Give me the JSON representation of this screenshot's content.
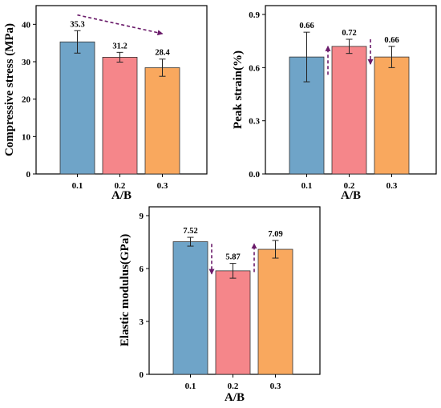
{
  "chart_data": [
    {
      "type": "bar",
      "panel": "a",
      "categories": [
        "0.1",
        "0.2",
        "0.3"
      ],
      "values": [
        35.3,
        31.2,
        28.4
      ],
      "errors": [
        3.0,
        1.3,
        2.3
      ],
      "data_labels": [
        "35.3",
        "31.2",
        "28.4"
      ],
      "bar_colors": [
        "#6fa4c8",
        "#f5868a",
        "#f9a85e"
      ],
      "xlabel": "A/B",
      "ylabel": "Compressive stress (MPa)",
      "ylim": [
        0,
        45
      ],
      "yticks": [
        0,
        10,
        20,
        30,
        40
      ],
      "ytick_labels": [
        "0",
        "10",
        "20",
        "30",
        "40"
      ],
      "annotations": [
        {
          "type": "dashed-arrow",
          "from": {
            "x": "0.1",
            "y": 42.5
          },
          "to": {
            "x": "0.3",
            "y": 37.5
          },
          "color": "#6a1b6a"
        }
      ]
    },
    {
      "type": "bar",
      "panel": "b",
      "categories": [
        "0.1",
        "0.2",
        "0.3"
      ],
      "values": [
        0.66,
        0.72,
        0.66
      ],
      "errors": [
        0.14,
        0.04,
        0.06
      ],
      "data_labels": [
        "0.66",
        "0.72",
        "0.66"
      ],
      "bar_colors": [
        "#6fa4c8",
        "#f5868a",
        "#f9a85e"
      ],
      "xlabel": "A/B",
      "ylabel": "Peak strain(%)",
      "ylim": [
        0,
        0.95
      ],
      "yticks": [
        0,
        0.3,
        0.6,
        0.9
      ],
      "ytick_labels": [
        "0.0",
        "0.3",
        "0.6",
        "0.9"
      ],
      "annotations": [
        {
          "type": "dashed-arrow",
          "from": {
            "x": "0.2",
            "y": 0.56
          },
          "to": {
            "x": "0.2",
            "y": 0.72
          },
          "side": "left",
          "color": "#6a1b6a"
        },
        {
          "type": "dashed-arrow",
          "from": {
            "x": "0.2",
            "y": 0.76
          },
          "to": {
            "x": "0.2",
            "y": 0.62
          },
          "side": "right",
          "color": "#6a1b6a"
        }
      ]
    },
    {
      "type": "bar",
      "panel": "c",
      "categories": [
        "0.1",
        "0.2",
        "0.3"
      ],
      "values": [
        7.52,
        5.87,
        7.09
      ],
      "errors": [
        0.25,
        0.42,
        0.5
      ],
      "data_labels": [
        "7.52",
        "5.87",
        "7.09"
      ],
      "bar_colors": [
        "#6fa4c8",
        "#f5868a",
        "#f9a85e"
      ],
      "xlabel": "A/B",
      "ylabel": "Elastic modulus(GPa)",
      "ylim": [
        0,
        9.5
      ],
      "yticks": [
        0,
        3,
        6,
        9
      ],
      "ytick_labels": [
        "0",
        "3",
        "6",
        "9"
      ],
      "annotations": [
        {
          "type": "dashed-arrow",
          "from": {
            "x": "0.1",
            "y": 7.4
          },
          "to": {
            "x": "0.1",
            "y": 5.7
          },
          "side": "right",
          "color": "#6a1b6a"
        },
        {
          "type": "dashed-arrow",
          "from": {
            "x": "0.3",
            "y": 5.8
          },
          "to": {
            "x": "0.3",
            "y": 7.4
          },
          "side": "left",
          "color": "#6a1b6a"
        }
      ]
    }
  ]
}
